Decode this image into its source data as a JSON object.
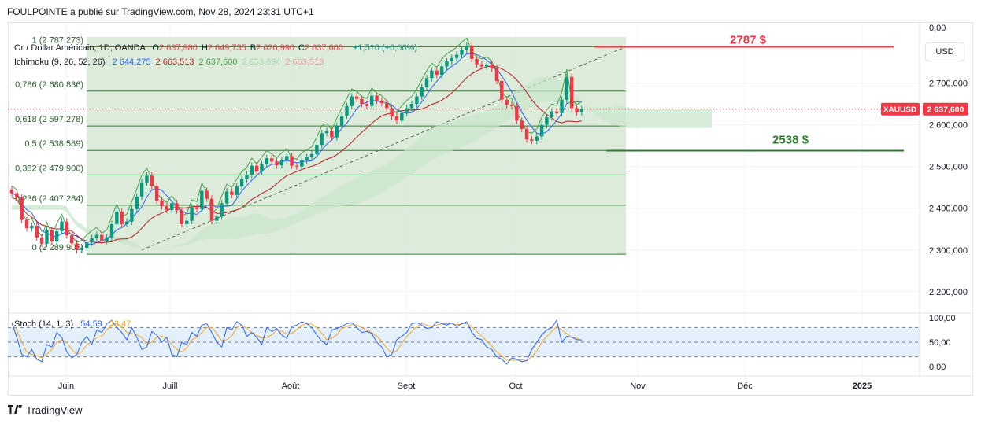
{
  "attribution": "FOULPOINTE a publié sur TradingView.com, Nov 28, 2024 23:31 UTC+1",
  "footer": {
    "logo_text": "TradingView",
    "logo_icon": "tradingview-logo-icon"
  },
  "currency_button": "USD",
  "legend": {
    "symbol": "Or / Dollar Américain, 1D, OANDA",
    "ohlc": [
      {
        "k": "O",
        "v": "2 637,980"
      },
      {
        "k": "H",
        "v": "2 649,735"
      },
      {
        "k": "B",
        "v": "2 620,990"
      },
      {
        "k": "C",
        "v": "2 637,600"
      }
    ],
    "change": "+1,510 (+0,06%)",
    "ichimoku_name": "Ichimoku (9, 26, 52, 26)",
    "ichimoku_values": [
      {
        "v": "2 644,275",
        "color": "#2962ff"
      },
      {
        "v": "2 663,513",
        "color": "#b71c1c"
      },
      {
        "v": "2 637,600",
        "color": "#43a047"
      },
      {
        "v": "2 653,894",
        "color": "#a5d6a7"
      },
      {
        "v": "2 663,513",
        "color": "#ef9a9a"
      }
    ],
    "stoch_name": "Stoch (14, 1, 3)",
    "stoch_k": "54,59",
    "stoch_d": "53,47"
  },
  "colors": {
    "up": "#089981",
    "down": "#f23645",
    "tenkan": "#2962ff",
    "kijun": "#b71c1c",
    "chikou": "#43a047",
    "cloud_bull": "#c8e6c9",
    "cloud_bear": "#ffcdd2",
    "fib_fill": "#d7e8d5",
    "fib_line": "#2e7d32",
    "resistance": "#f23645",
    "support": "#2e7d32",
    "stoch_k": "#2962ff",
    "stoch_d": "#f5a623",
    "stoch_band": "#e3effa"
  },
  "annotations": {
    "resistance_label": "2787 $",
    "support_label": "2538 $"
  },
  "price_tag": {
    "symbol": "XAUUSD",
    "value": "2 637,600"
  },
  "chart_data": {
    "type": "candlestick",
    "title": "Or / Dollar Américain, 1D, OANDA",
    "x_tick_labels": [
      "Juin",
      "Juill",
      "Août",
      "Sept",
      "Oct",
      "Nov",
      "Déc",
      "2025"
    ],
    "price_axis_labels": [
      "2 700,000",
      "2 600,000",
      "2 500,000",
      "2 400,000",
      "2 300,000",
      "2 200,000"
    ],
    "price_axis_top_label": "0,00",
    "y_range": [
      2160,
      2820
    ],
    "fibonacci": [
      {
        "label": "1 (2 787,273)",
        "level": 2787.273
      },
      {
        "label": "0,786 (2 680,836)",
        "level": 2680.836
      },
      {
        "label": "0,618 (2 597,278)",
        "level": 2597.278
      },
      {
        "label": "0,5 (2 538,589)",
        "level": 2538.589
      },
      {
        "label": "0,382 (2 479,900)",
        "level": 2479.9
      },
      {
        "label": "0,236 (2 407,284)",
        "level": 2407.284
      },
      {
        "label": "0 (2 289,905)",
        "level": 2289.905
      }
    ],
    "resistance": 2787,
    "support": 2538,
    "last_close": 2637.6,
    "closes": [
      2436,
      2426,
      2372,
      2352,
      2358,
      2330,
      2315,
      2348,
      2320,
      2345,
      2368,
      2335,
      2316,
      2300,
      2305,
      2318,
      2328,
      2336,
      2322,
      2330,
      2362,
      2392,
      2362,
      2368,
      2398,
      2428,
      2462,
      2478,
      2453,
      2418,
      2405,
      2396,
      2412,
      2395,
      2362,
      2370,
      2402,
      2398,
      2442,
      2423,
      2370,
      2380,
      2412,
      2440,
      2432,
      2452,
      2470,
      2480,
      2502,
      2488,
      2505,
      2520,
      2512,
      2503,
      2515,
      2525,
      2502,
      2500,
      2515,
      2522,
      2530,
      2552,
      2580,
      2585,
      2570,
      2598,
      2622,
      2645,
      2668,
      2662,
      2650,
      2645,
      2670,
      2658,
      2652,
      2640,
      2620,
      2610,
      2628,
      2640,
      2650,
      2668,
      2690,
      2712,
      2730,
      2720,
      2740,
      2752,
      2760,
      2768,
      2780,
      2790,
      2758,
      2745,
      2740,
      2745,
      2735,
      2705,
      2660,
      2648,
      2645,
      2610,
      2590,
      2565,
      2562,
      2572,
      2600,
      2618,
      2632,
      2628,
      2660,
      2715,
      2640,
      2630,
      2638
    ],
    "opens": [
      2445,
      2436,
      2426,
      2372,
      2352,
      2358,
      2330,
      2315,
      2348,
      2320,
      2345,
      2368,
      2335,
      2316,
      2300,
      2305,
      2318,
      2328,
      2336,
      2322,
      2330,
      2362,
      2392,
      2362,
      2368,
      2398,
      2428,
      2462,
      2478,
      2453,
      2418,
      2405,
      2396,
      2412,
      2395,
      2362,
      2370,
      2402,
      2398,
      2442,
      2423,
      2370,
      2380,
      2412,
      2440,
      2432,
      2452,
      2470,
      2480,
      2502,
      2488,
      2505,
      2520,
      2512,
      2503,
      2515,
      2525,
      2502,
      2500,
      2515,
      2522,
      2530,
      2552,
      2580,
      2585,
      2570,
      2598,
      2622,
      2645,
      2668,
      2662,
      2650,
      2645,
      2670,
      2658,
      2652,
      2640,
      2620,
      2610,
      2628,
      2640,
      2650,
      2668,
      2690,
      2712,
      2730,
      2720,
      2740,
      2752,
      2760,
      2768,
      2780,
      2790,
      2758,
      2745,
      2740,
      2745,
      2735,
      2705,
      2660,
      2648,
      2645,
      2610,
      2590,
      2565,
      2562,
      2572,
      2600,
      2618,
      2632,
      2628,
      2660,
      2715,
      2640,
      2630
    ],
    "stoch": {
      "name": "Stoch (14, 1, 3)",
      "levels": [
        80,
        50,
        20
      ],
      "axis_labels": [
        "100,00",
        "50,00",
        "0,00"
      ],
      "k": [
        90,
        60,
        25,
        20,
        35,
        15,
        10,
        45,
        40,
        70,
        60,
        30,
        18,
        25,
        50,
        62,
        45,
        75,
        70,
        88,
        95,
        80,
        70,
        55,
        80,
        60,
        35,
        40,
        72,
        65,
        50,
        60,
        25,
        20,
        50,
        45,
        70,
        62,
        85,
        88,
        70,
        50,
        40,
        80,
        75,
        92,
        85,
        62,
        70,
        60,
        45,
        80,
        72,
        78,
        65,
        58,
        82,
        85,
        92,
        88,
        80,
        65,
        52,
        45,
        75,
        78,
        82,
        88,
        90,
        80,
        70,
        72,
        68,
        50,
        40,
        20,
        25,
        55,
        62,
        70,
        88,
        90,
        85,
        78,
        80,
        92,
        88,
        85,
        90,
        82,
        88,
        92,
        70,
        58,
        55,
        40,
        35,
        20,
        15,
        5,
        18,
        15,
        10,
        12,
        35,
        50,
        65,
        75,
        80,
        95,
        50,
        62,
        60,
        55,
        54.59
      ],
      "d": [
        85,
        75,
        50,
        30,
        25,
        22,
        18,
        25,
        35,
        50,
        55,
        50,
        35,
        25,
        30,
        45,
        50,
        60,
        62,
        75,
        85,
        88,
        82,
        70,
        68,
        65,
        60,
        45,
        50,
        60,
        62,
        58,
        45,
        35,
        30,
        38,
        55,
        60,
        70,
        80,
        80,
        68,
        53,
        55,
        63,
        80,
        85,
        78,
        70,
        65,
        58,
        60,
        65,
        75,
        72,
        67,
        68,
        75,
        85,
        88,
        87,
        80,
        68,
        55,
        58,
        65,
        78,
        82,
        86,
        85,
        80,
        74,
        70,
        62,
        52,
        38,
        28,
        32,
        47,
        62,
        72,
        82,
        88,
        85,
        82,
        85,
        88,
        88,
        88,
        86,
        87,
        88,
        82,
        72,
        62,
        52,
        42,
        30,
        22,
        13,
        13,
        13,
        14,
        12,
        20,
        32,
        50,
        62,
        72,
        82,
        75,
        68,
        60,
        58,
        53.47
      ]
    }
  }
}
